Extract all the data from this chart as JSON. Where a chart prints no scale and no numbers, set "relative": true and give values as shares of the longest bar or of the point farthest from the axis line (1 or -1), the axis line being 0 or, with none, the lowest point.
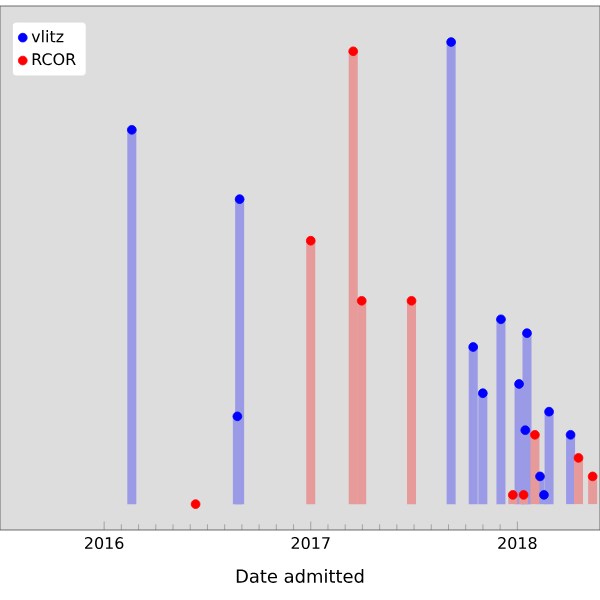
{
  "chart_data": {
    "type": "lollipop",
    "relative": true,
    "xlabel": "Date admitted",
    "tick_labels": "x",
    "legend": "top left",
    "marker": "circle",
    "xlim": [
      "2015-07-01",
      "2018-05-27"
    ],
    "xticks": [
      "2016",
      "2017",
      "2018"
    ],
    "series": [
      {
        "name": "vlitz",
        "color": "#0000ff",
        "x": [
          "2016-02-19",
          "2016-08-28",
          "2016-08-24",
          "2017-09-06",
          "2017-10-15",
          "2017-11-01",
          "2017-12-03",
          "2018-01-04",
          "2018-01-18",
          "2018-01-15",
          "2018-02-26",
          "2018-02-10",
          "2018-02-17",
          "2018-04-05"
        ],
        "values": [
          0.81,
          0.66,
          0.19,
          1.0,
          0.34,
          0.24,
          0.4,
          0.26,
          0.37,
          0.16,
          0.2,
          0.06,
          0.02,
          0.15
        ]
      },
      {
        "name": "RCOR",
        "color": "#ff0000",
        "x": [
          "2016-06-11",
          "2017-01-01",
          "2017-03-17",
          "2017-04-01",
          "2017-06-28",
          "2017-12-24",
          "2018-01-12",
          "2018-02-01",
          "2018-04-19",
          "2018-05-14"
        ],
        "values": [
          0.0,
          0.57,
          0.98,
          0.44,
          0.44,
          0.02,
          0.02,
          0.15,
          0.1,
          0.06
        ]
      }
    ]
  }
}
